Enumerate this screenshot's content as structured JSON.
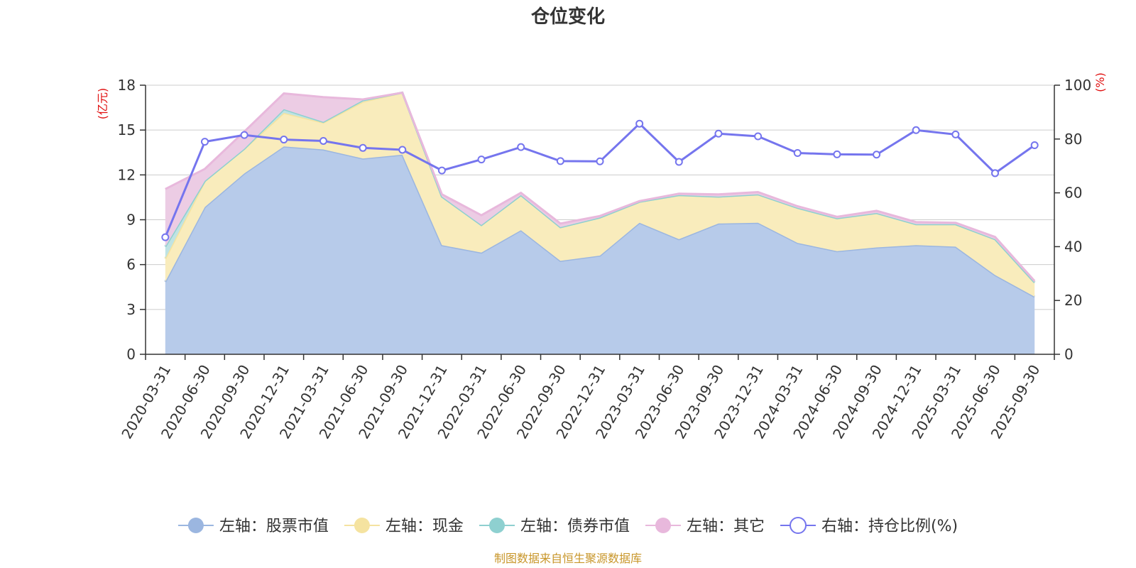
{
  "chart_data": {
    "type": "area",
    "title": "仓位变化",
    "left_unit": "(亿元)",
    "right_unit": "(%)",
    "source": "制图数据来自恒生聚源数据库",
    "categories": [
      "2020-03-31",
      "2020-06-30",
      "2020-09-30",
      "2020-12-31",
      "2021-03-31",
      "2021-06-30",
      "2021-09-30",
      "2021-12-31",
      "2022-03-31",
      "2022-06-30",
      "2022-09-30",
      "2022-12-31",
      "2023-03-31",
      "2023-06-30",
      "2023-09-30",
      "2023-12-31",
      "2024-03-31",
      "2024-06-30",
      "2024-09-30",
      "2024-12-31",
      "2025-03-31",
      "2025-06-30",
      "2025-09-30"
    ],
    "left_axis": {
      "min": 0,
      "max": 18,
      "ticks": [
        0,
        3,
        6,
        9,
        12,
        15,
        18
      ]
    },
    "right_axis": {
      "min": 0,
      "max": 100,
      "ticks": [
        0,
        20,
        40,
        60,
        80,
        100
      ]
    },
    "grid": true,
    "legend_position": "bottom",
    "series": [
      {
        "name": "左轴：股票市值",
        "axis": "left",
        "stacked": true,
        "color": "#9bb6e0",
        "fill": "#b7cbea",
        "values": [
          4.85,
          9.85,
          12.1,
          13.9,
          13.7,
          13.1,
          13.35,
          7.3,
          6.8,
          8.3,
          6.25,
          6.6,
          8.8,
          7.7,
          8.75,
          8.8,
          7.45,
          6.9,
          7.15,
          7.3,
          7.2,
          5.3,
          3.85
        ]
      },
      {
        "name": "左轴：现金",
        "axis": "left",
        "stacked": true,
        "color": "#f5e3a0",
        "fill": "#f9ecbc",
        "values": [
          1.55,
          1.75,
          1.65,
          2.25,
          1.8,
          3.8,
          4.15,
          3.25,
          1.85,
          2.35,
          2.25,
          2.55,
          1.4,
          2.95,
          1.8,
          1.9,
          2.35,
          2.2,
          2.3,
          1.4,
          1.5,
          2.4,
          0.95
        ]
      },
      {
        "name": "左轴：债券市值",
        "axis": "left",
        "stacked": true,
        "color": "#8ed0d0",
        "fill": "#bfe3e3",
        "values": [
          0.8,
          0.0,
          0.0,
          0.25,
          0.05,
          0.1,
          0.0,
          0.0,
          0.0,
          0.0,
          0.0,
          0.0,
          0.0,
          0.0,
          0.0,
          0.0,
          0.0,
          0.0,
          0.0,
          0.0,
          0.0,
          0.0,
          0.0
        ]
      },
      {
        "name": "左轴：其它",
        "axis": "left",
        "stacked": true,
        "color": "#e8b8dc",
        "fill": "#eccce4",
        "values": [
          3.85,
          0.8,
          1.15,
          1.05,
          1.65,
          0.05,
          0.0,
          0.15,
          0.65,
          0.15,
          0.25,
          0.1,
          0.05,
          0.1,
          0.15,
          0.15,
          0.1,
          0.1,
          0.15,
          0.15,
          0.1,
          0.15,
          0.1
        ]
      },
      {
        "name": "右轴：持仓比例(%)",
        "axis": "right",
        "stacked": false,
        "color": "#7575ee",
        "values": [
          43.5,
          79.0,
          81.5,
          79.8,
          79.3,
          76.7,
          76.0,
          68.3,
          72.4,
          77.0,
          71.8,
          71.7,
          85.7,
          71.5,
          82.0,
          81.0,
          74.8,
          74.3,
          74.2,
          83.3,
          81.7,
          67.3,
          77.7
        ]
      }
    ]
  }
}
